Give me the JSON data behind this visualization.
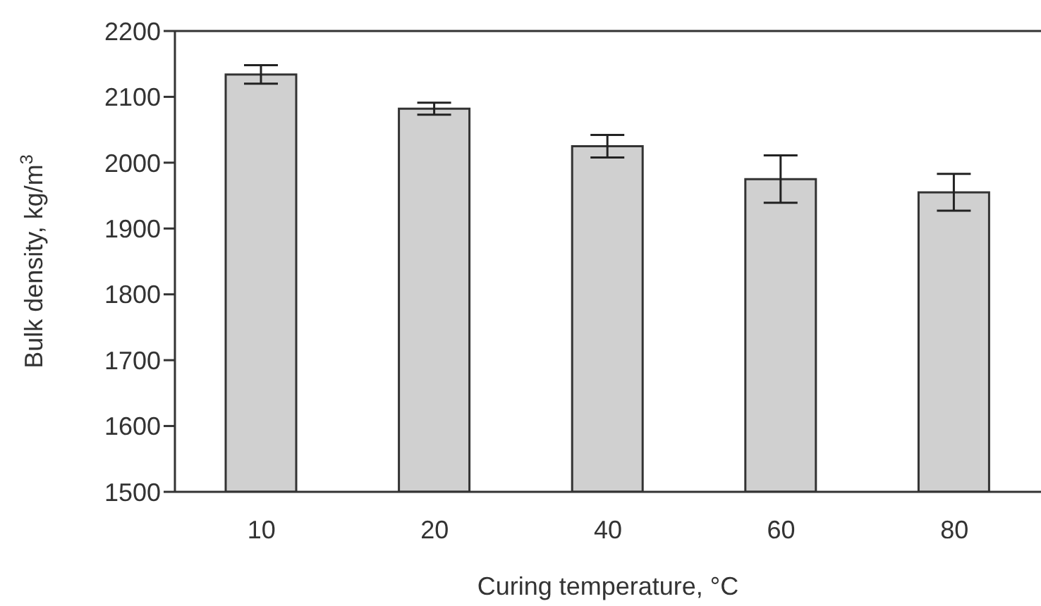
{
  "chart_data": {
    "type": "bar",
    "xlabel": "Curing temperature, °C",
    "ylabel": "Bulk density, kg/m$^{3}$",
    "categories": [
      "10",
      "20",
      "40",
      "60",
      "80"
    ],
    "values": [
      2134,
      2082,
      2025,
      1975,
      1955
    ],
    "errors": [
      14,
      9,
      17,
      36,
      28
    ],
    "color": "#d0d0d0",
    "ylim": [
      1500,
      2200
    ],
    "yticks": [
      1500,
      1600,
      1700,
      1800,
      1900,
      2000,
      2100,
      2200
    ],
    "grid": false
  }
}
